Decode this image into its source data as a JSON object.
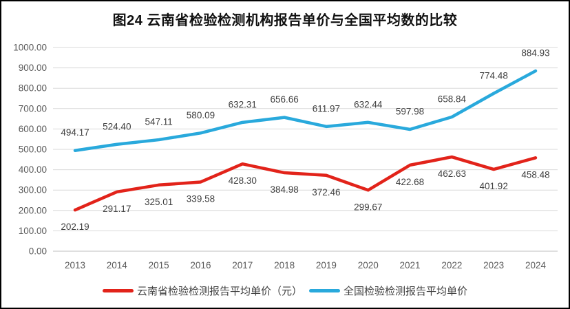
{
  "chart_data": {
    "type": "line",
    "title": "图24 云南省检验检测机构报告单价与全国平均数的比较",
    "categories": [
      "2013",
      "2014",
      "2015",
      "2016",
      "2017",
      "2018",
      "2019",
      "2020",
      "2021",
      "2022",
      "2023",
      "2024"
    ],
    "series": [
      {
        "name": "云南省检验检测报告平均单价（元）",
        "color": "#e2231a",
        "label_position": "below",
        "values": [
          202.19,
          291.17,
          325.01,
          339.58,
          428.3,
          384.98,
          372.46,
          299.67,
          422.68,
          462.63,
          401.92,
          458.48
        ]
      },
      {
        "name": "全国检验检测报告平均单价",
        "color": "#29a9dc",
        "label_position": "above",
        "values": [
          494.17,
          524.4,
          547.11,
          580.09,
          632.31,
          656.66,
          611.97,
          632.44,
          597.98,
          658.84,
          774.48,
          884.93
        ]
      }
    ],
    "ylim": [
      0,
      1000
    ],
    "ytick_step": 100,
    "ytick_labels": [
      "0.00",
      "100.00",
      "200.00",
      "300.00",
      "400.00",
      "500.00",
      "600.00",
      "700.00",
      "800.00",
      "900.00",
      "1000.00"
    ],
    "value_decimals": 2,
    "grid": true,
    "legend_position": "bottom",
    "colors": {
      "gridline": "#d9d9d9",
      "axis_line": "#bfbfbf",
      "tick_label": "#595959",
      "data_label": "#404040",
      "title": "#111111"
    }
  }
}
